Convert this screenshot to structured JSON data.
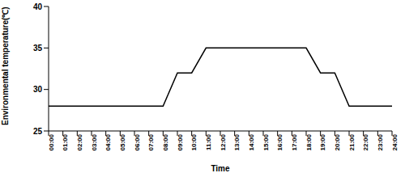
{
  "chart_data": {
    "type": "line",
    "x_label": "Time",
    "y_label": "Environmental temperature(℃)",
    "categories": [
      "00:00",
      "01:00",
      "02:00",
      "03:00",
      "04:00",
      "05:00",
      "06:00",
      "07:00",
      "08:00",
      "09:00",
      "10:00",
      "11:00",
      "12:00",
      "13:00",
      "14:00",
      "15:00",
      "16:00",
      "17:00",
      "18:00",
      "19:00",
      "20:00",
      "21:00",
      "22:00",
      "23:00",
      "24:00"
    ],
    "values": [
      28,
      28,
      28,
      28,
      28,
      28,
      28,
      28,
      28,
      32,
      32,
      35,
      35,
      35,
      35,
      35,
      35,
      35,
      35,
      32,
      32,
      28,
      28,
      28,
      28
    ],
    "color": "#000000",
    "ylim": [
      25,
      40
    ],
    "yticks": [
      25,
      30,
      35,
      40
    ],
    "grid": false
  }
}
